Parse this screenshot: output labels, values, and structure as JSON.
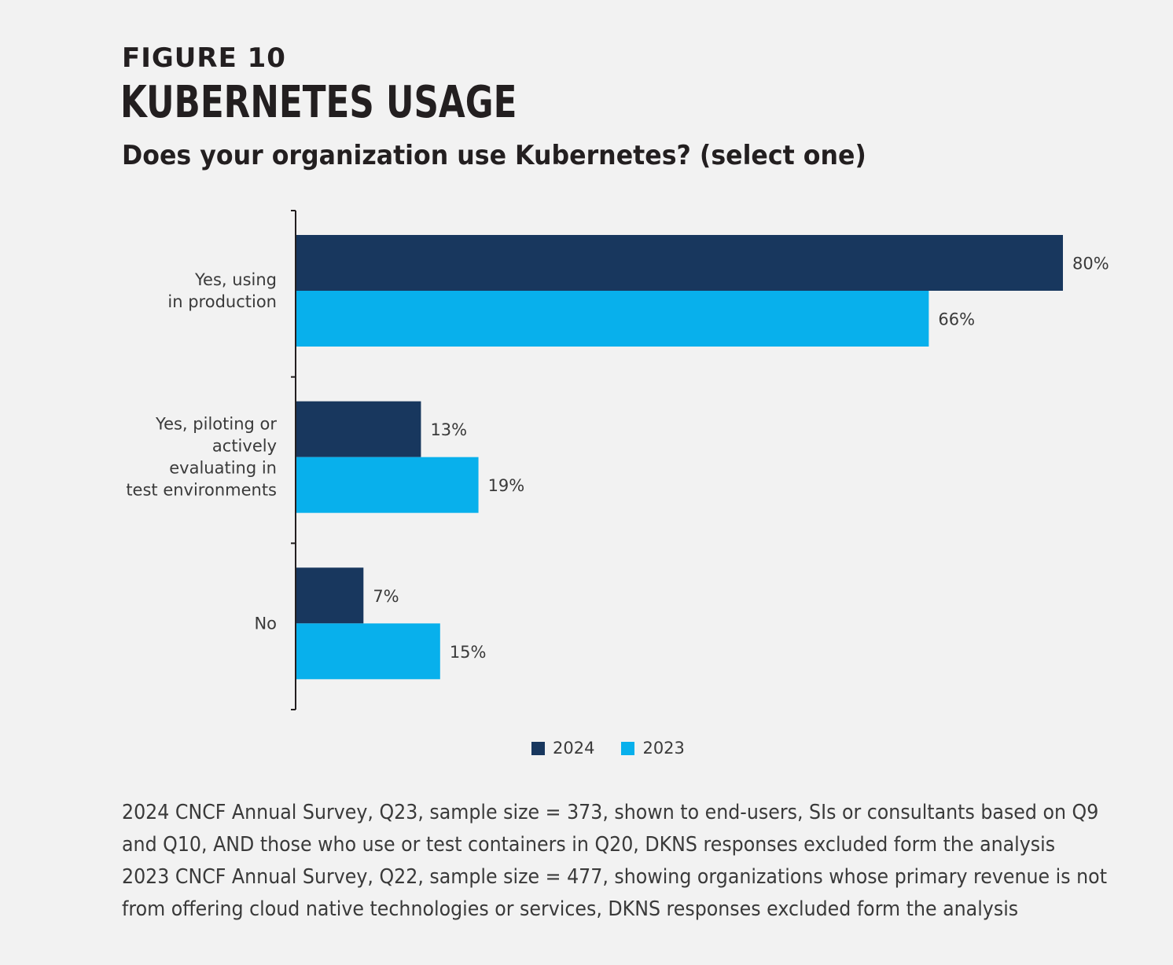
{
  "header": {
    "figure_label": "FIGURE 10",
    "title": "KUBERNETES USAGE",
    "question": "Does your organization use Kubernetes? (select one)"
  },
  "colors": {
    "series_2024": "#18375e",
    "series_2023": "#08b0ec",
    "axis": "#231f20",
    "text": "#3a3a3a",
    "background": "#f2f2f2"
  },
  "chart_data": {
    "type": "bar",
    "orientation": "horizontal",
    "categories": [
      [
        "Yes, using",
        "in production"
      ],
      [
        "Yes, piloting or",
        "actively",
        "evaluating in",
        "test environments"
      ],
      [
        "No"
      ]
    ],
    "series": [
      {
        "name": "2024",
        "values": [
          80,
          13,
          7
        ],
        "labels": [
          "80%",
          "13%",
          "7%"
        ]
      },
      {
        "name": "2023",
        "values": [
          66,
          19,
          15
        ],
        "labels": [
          "66%",
          "19%",
          "15%"
        ]
      }
    ],
    "xlim": [
      0,
      80
    ],
    "grid": false,
    "legend_position": "bottom-center"
  },
  "legend": {
    "items": [
      {
        "label": "2024"
      },
      {
        "label": "2023"
      }
    ]
  },
  "footnote": {
    "lines": [
      "2024 CNCF Annual Survey, Q23, sample size = 373, shown to end-users, SIs or consultants based on Q9",
      "and Q10, AND those who use or test containers in Q20, DKNS responses excluded form the analysis",
      "2023 CNCF Annual Survey, Q22, sample size = 477, showing organizations whose primary revenue is not",
      "from offering cloud native technologies or services, DKNS responses excluded form the analysis"
    ]
  }
}
